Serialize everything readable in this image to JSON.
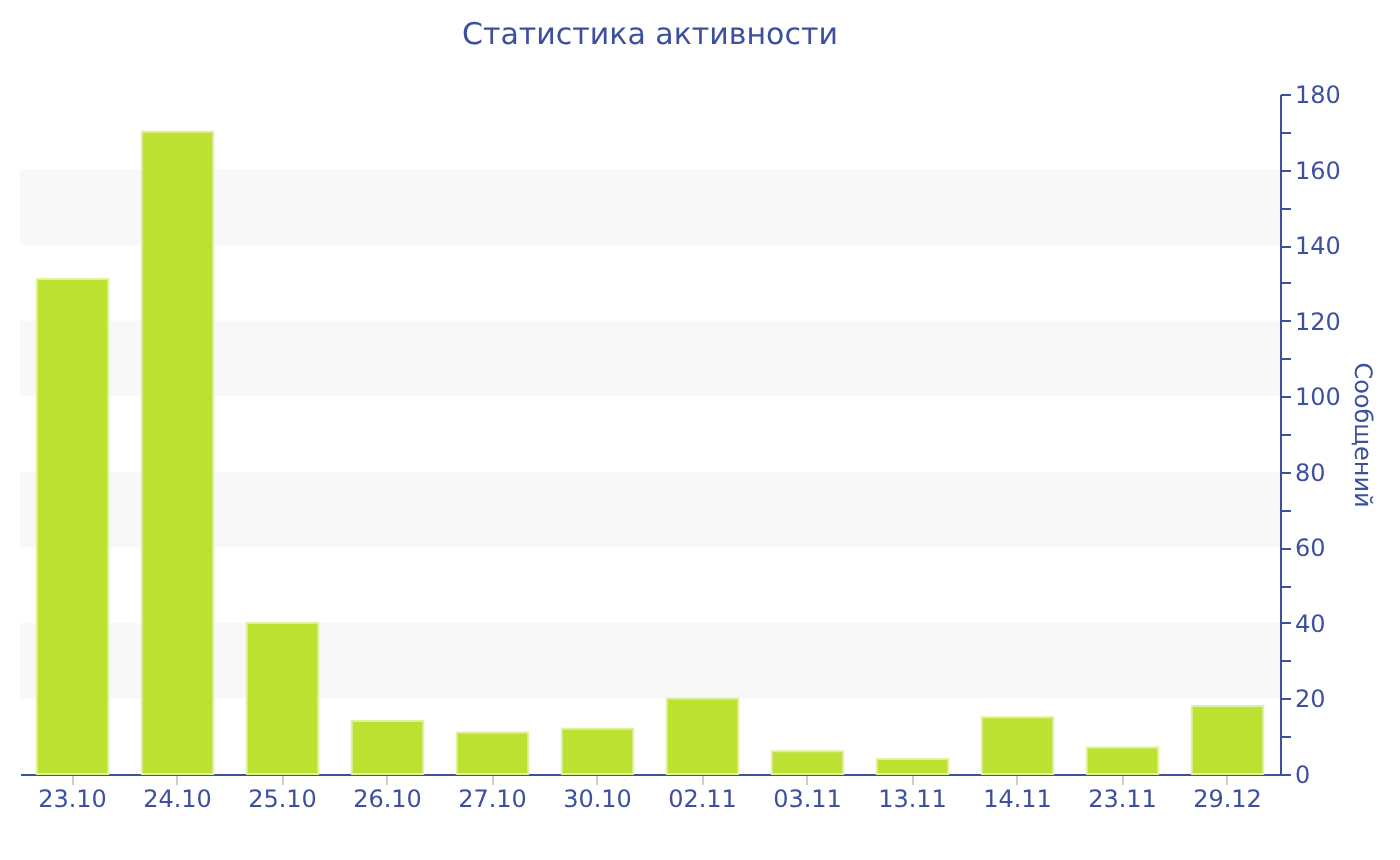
{
  "chart_data": {
    "type": "bar",
    "title": "Статистика активности",
    "ylabel": "Сообщений",
    "categories": [
      "23.10",
      "24.10",
      "25.10",
      "26.10",
      "27.10",
      "30.10",
      "02.11",
      "03.11",
      "13.11",
      "14.11",
      "23.11",
      "29.12"
    ],
    "values": [
      131,
      170,
      40,
      14,
      11,
      12,
      20,
      6,
      4,
      15,
      7,
      18
    ],
    "color": "#bce131",
    "ylim": [
      0,
      180
    ],
    "yticks": [
      0,
      {
        "value": 10,
        "label": null
      },
      20,
      {
        "value": 30,
        "label": null
      },
      40,
      {
        "value": 50,
        "label": null
      },
      60,
      {
        "value": 70,
        "label": null
      },
      80,
      {
        "value": 90,
        "label": null
      },
      100,
      {
        "value": 110,
        "label": null
      },
      120,
      {
        "value": 130,
        "label": null
      },
      140,
      {
        "value": 150,
        "label": null
      },
      160,
      {
        "value": 170,
        "label": null
      },
      180
    ],
    "bands": [
      {
        "axis": "y",
        "from": 20,
        "to": 40,
        "color": "#f8f8f8"
      },
      {
        "axis": "y",
        "from": 60,
        "to": 80,
        "color": "#f8f8f8"
      },
      {
        "axis": "y",
        "from": 100,
        "to": 120,
        "color": "#f8f8f8"
      },
      {
        "axis": "y",
        "from": 140,
        "to": 160,
        "color": "#f8f8f8"
      }
    ],
    "grid": false
  }
}
